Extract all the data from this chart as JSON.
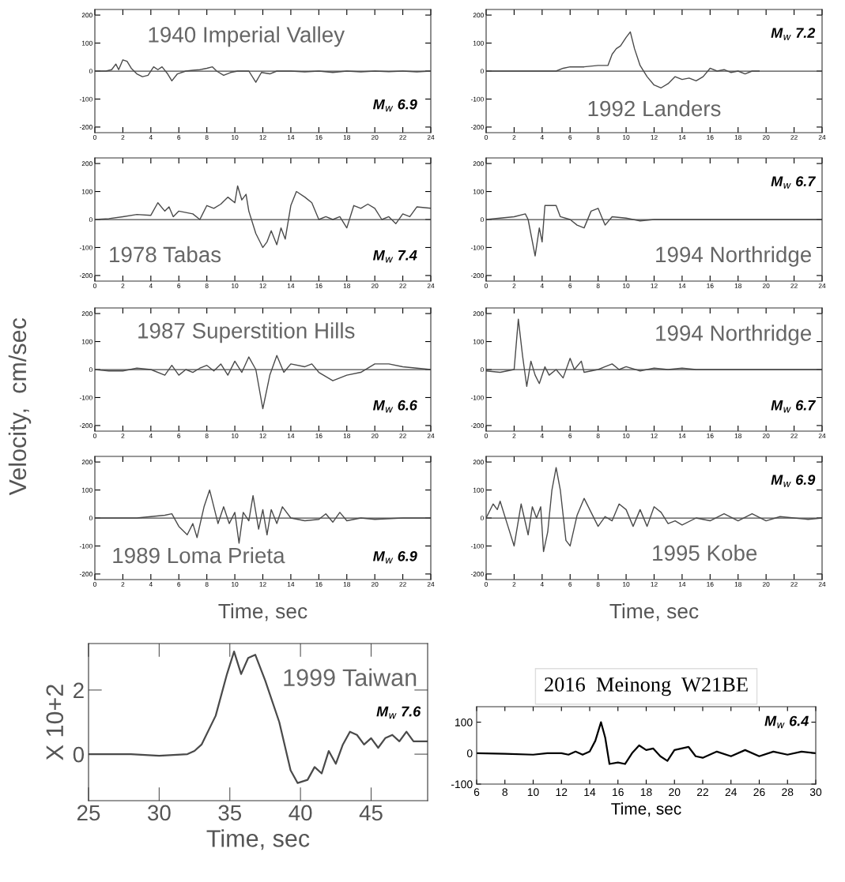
{
  "chart_data": [
    {
      "type": "line",
      "title": "1940 Imperial Valley",
      "annotations": [
        "M$_{w}$ 6.9"
      ],
      "color": "#4a4a4a",
      "xlim": [
        0,
        24
      ],
      "xticks": [
        0,
        2,
        4,
        6,
        8,
        10,
        12,
        14,
        16,
        18,
        20,
        22,
        24
      ],
      "ylim": [
        -220,
        220
      ],
      "yticks": [
        -200,
        -100,
        0,
        100,
        200
      ],
      "ref_lines": [
        {
          "axis": "y",
          "value": 0
        }
      ],
      "x": [
        0,
        0.8,
        1.2,
        1.5,
        1.7,
        2,
        2.3,
        2.6,
        3,
        3.4,
        3.8,
        4.2,
        4.5,
        4.8,
        5.2,
        5.5,
        5.9,
        6.5,
        7,
        7.5,
        8,
        8.4,
        8.7,
        9.2,
        9.7,
        10.2,
        11,
        11.5,
        11.9,
        12.5,
        13,
        14,
        15,
        16,
        17,
        18,
        19,
        20,
        21,
        22,
        23,
        24
      ],
      "values": [
        0,
        0,
        5,
        25,
        5,
        40,
        35,
        10,
        -10,
        -20,
        -15,
        15,
        5,
        15,
        -10,
        -35,
        -10,
        0,
        3,
        5,
        10,
        15,
        0,
        -15,
        -5,
        0,
        0,
        -40,
        -5,
        -10,
        0,
        0,
        -3,
        0,
        -5,
        0,
        -3,
        0,
        -2,
        0,
        -3,
        0
      ]
    },
    {
      "type": "line",
      "title": "1992 Landers",
      "annotations": [
        "M$_{w}$ 7.2"
      ],
      "color": "#4a4a4a",
      "xlim": [
        0,
        24
      ],
      "xticks": [
        0,
        2,
        4,
        6,
        8,
        10,
        12,
        14,
        16,
        18,
        20,
        22,
        24
      ],
      "ylim": [
        -220,
        220
      ],
      "yticks": [
        -200,
        -100,
        0,
        100,
        200
      ],
      "ref_lines": [
        {
          "axis": "y",
          "value": 0
        }
      ],
      "x": [
        0,
        5,
        5.5,
        6,
        7,
        8,
        8.7,
        9,
        9.3,
        9.6,
        10,
        10.3,
        10.6,
        11,
        11.5,
        12,
        12.5,
        13,
        13.5,
        14,
        14.5,
        15,
        15.5,
        16,
        16.5,
        17,
        17.5,
        18,
        18.5,
        19,
        19.5
      ],
      "values": [
        0,
        0,
        10,
        15,
        15,
        20,
        20,
        60,
        80,
        90,
        120,
        140,
        80,
        20,
        -20,
        -50,
        -60,
        -45,
        -20,
        -30,
        -25,
        -35,
        -20,
        10,
        0,
        5,
        -5,
        0,
        -10,
        0,
        0
      ]
    },
    {
      "type": "line",
      "title": "1978 Tabas",
      "annotations": [
        "M$_{w}$ 7.4"
      ],
      "color": "#4a4a4a",
      "xlim": [
        0,
        24
      ],
      "xticks": [
        0,
        2,
        4,
        6,
        8,
        10,
        12,
        14,
        16,
        18,
        20,
        22,
        24
      ],
      "ylim": [
        -220,
        220
      ],
      "yticks": [
        -200,
        -100,
        0,
        100,
        200
      ],
      "ref_lines": [
        {
          "axis": "y",
          "value": 0
        }
      ],
      "x": [
        0,
        1,
        2,
        3,
        4,
        4.5,
        5,
        5.3,
        5.6,
        6,
        7,
        7.5,
        8,
        8.5,
        9,
        9.5,
        10,
        10.2,
        10.5,
        10.8,
        11,
        11.5,
        12,
        12.3,
        12.6,
        13,
        13.3,
        13.6,
        14,
        14.4,
        15,
        15.5,
        16,
        16.5,
        17,
        17.5,
        18,
        18.5,
        19,
        19.5,
        20,
        20.5,
        21,
        21.5,
        22,
        22.5,
        23,
        24
      ],
      "values": [
        0,
        3,
        10,
        18,
        15,
        60,
        30,
        45,
        10,
        30,
        20,
        0,
        50,
        40,
        55,
        80,
        60,
        120,
        70,
        90,
        30,
        -50,
        -100,
        -80,
        -40,
        -90,
        -30,
        -70,
        50,
        100,
        80,
        60,
        0,
        10,
        0,
        10,
        -30,
        50,
        40,
        55,
        40,
        0,
        10,
        -15,
        20,
        10,
        45,
        40
      ]
    },
    {
      "type": "line",
      "title": "1994 Northridge",
      "annotations": [
        "M$_{w}$ 6.7"
      ],
      "color": "#4a4a4a",
      "xlim": [
        0,
        24
      ],
      "xticks": [
        0,
        2,
        4,
        6,
        8,
        10,
        12,
        14,
        16,
        18,
        20,
        22,
        24
      ],
      "ylim": [
        -220,
        220
      ],
      "yticks": [
        -200,
        -100,
        0,
        100,
        200
      ],
      "ref_lines": [
        {
          "axis": "y",
          "value": 0
        }
      ],
      "x": [
        0,
        2,
        2.8,
        3,
        3.5,
        3.8,
        4,
        4.2,
        4.6,
        5,
        5.3,
        6,
        6.5,
        7,
        7.5,
        8,
        8.5,
        9,
        10,
        11,
        12,
        24
      ],
      "values": [
        0,
        10,
        20,
        0,
        -130,
        -30,
        -80,
        50,
        50,
        50,
        10,
        0,
        -20,
        -30,
        30,
        40,
        -20,
        10,
        5,
        -5,
        0,
        0
      ]
    },
    {
      "type": "line",
      "title": "1987 Superstition Hills",
      "ylabel": "Velocity,  cm/sec",
      "annotations": [
        "M$_{w}$ 6.6"
      ],
      "color": "#4a4a4a",
      "xlim": [
        0,
        24
      ],
      "xticks": [
        0,
        2,
        4,
        6,
        8,
        10,
        12,
        14,
        16,
        18,
        20,
        22,
        24
      ],
      "ylim": [
        -220,
        220
      ],
      "yticks": [
        -200,
        -100,
        0,
        100,
        200
      ],
      "ref_lines": [
        {
          "axis": "y",
          "value": 0
        }
      ],
      "x": [
        0,
        1,
        2,
        3,
        4,
        5,
        5.5,
        6,
        6.5,
        7,
        7.5,
        8,
        8.5,
        9,
        9.5,
        10,
        10.5,
        11,
        11.5,
        12,
        12.5,
        13,
        13.5,
        14,
        15,
        15.5,
        16,
        17,
        18,
        19,
        20,
        21,
        22,
        24
      ],
      "values": [
        0,
        -5,
        -5,
        5,
        0,
        -20,
        15,
        -20,
        0,
        -10,
        5,
        15,
        -5,
        20,
        -20,
        30,
        -10,
        45,
        0,
        -140,
        -20,
        50,
        -10,
        20,
        10,
        20,
        -10,
        -40,
        -20,
        -10,
        20,
        20,
        10,
        0
      ]
    },
    {
      "type": "line",
      "title": "1994 Northridge",
      "annotations": [
        "M$_{w}$ 6.7"
      ],
      "color": "#4a4a4a",
      "xlim": [
        0,
        24
      ],
      "xticks": [
        0,
        2,
        4,
        6,
        8,
        10,
        12,
        14,
        16,
        18,
        20,
        22,
        24
      ],
      "ylim": [
        -220,
        220
      ],
      "yticks": [
        -200,
        -100,
        0,
        100,
        200
      ],
      "ref_lines": [
        {
          "axis": "y",
          "value": 0
        }
      ],
      "x": [
        0,
        1,
        1.5,
        2,
        2.3,
        2.6,
        2.9,
        3.2,
        3.5,
        3.8,
        4.2,
        4.5,
        5,
        5.5,
        6,
        6.3,
        6.8,
        7,
        8,
        9,
        9.5,
        10,
        11,
        12,
        13,
        14,
        15,
        24
      ],
      "values": [
        -5,
        -10,
        -5,
        0,
        180,
        50,
        -60,
        30,
        -20,
        -50,
        10,
        -20,
        0,
        -30,
        40,
        0,
        30,
        -10,
        0,
        20,
        0,
        10,
        -5,
        5,
        0,
        5,
        0,
        0
      ]
    },
    {
      "type": "line",
      "title": "1989 Loma Prieta",
      "xlabel": "Time, sec",
      "annotations": [
        "M$_{w}$ 6.9"
      ],
      "color": "#4a4a4a",
      "xlim": [
        0,
        24
      ],
      "xticks": [
        0,
        2,
        4,
        6,
        8,
        10,
        12,
        14,
        16,
        18,
        20,
        22,
        24
      ],
      "ylim": [
        -220,
        220
      ],
      "yticks": [
        -200,
        -100,
        0,
        100,
        200
      ],
      "ref_lines": [
        {
          "axis": "y",
          "value": 0
        }
      ],
      "x": [
        0,
        3,
        4,
        5,
        5.5,
        6,
        6.6,
        7,
        7.3,
        7.8,
        8.2,
        8.5,
        8.8,
        9.2,
        9.6,
        10,
        10.3,
        10.6,
        11,
        11.3,
        11.7,
        12,
        12.3,
        12.6,
        13,
        13.4,
        14,
        15,
        16,
        16.5,
        17,
        17.5,
        18,
        19,
        20,
        22,
        24
      ],
      "values": [
        0,
        0,
        5,
        10,
        15,
        -30,
        -60,
        -20,
        -70,
        40,
        100,
        40,
        -20,
        40,
        -20,
        20,
        -90,
        20,
        -10,
        80,
        -40,
        30,
        -60,
        30,
        -20,
        40,
        0,
        -10,
        -5,
        15,
        -15,
        20,
        -10,
        0,
        -5,
        0,
        0
      ]
    },
    {
      "type": "line",
      "title": "1995 Kobe",
      "xlabel": "Time, sec",
      "annotations": [
        "M$_{w}$ 6.9"
      ],
      "color": "#4a4a4a",
      "xlim": [
        0,
        24
      ],
      "xticks": [
        0,
        2,
        4,
        6,
        8,
        10,
        12,
        14,
        16,
        18,
        20,
        22,
        24
      ],
      "ylim": [
        -220,
        220
      ],
      "yticks": [
        -200,
        -100,
        0,
        100,
        200
      ],
      "ref_lines": [
        {
          "axis": "y",
          "value": 0
        }
      ],
      "x": [
        0,
        0.5,
        0.8,
        1,
        1.5,
        2,
        2.5,
        3,
        3.3,
        3.6,
        3.9,
        4.1,
        4.4,
        4.7,
        5,
        5.3,
        5.7,
        6,
        6.5,
        7,
        7.5,
        8,
        8.5,
        9,
        9.5,
        10,
        10.5,
        11,
        11.5,
        12,
        12.5,
        13,
        13.5,
        14,
        15,
        16,
        17,
        18,
        19,
        20,
        21,
        22,
        23,
        24
      ],
      "values": [
        0,
        50,
        30,
        60,
        -20,
        -100,
        50,
        -60,
        40,
        0,
        40,
        -120,
        -50,
        100,
        180,
        100,
        -80,
        -100,
        10,
        70,
        20,
        -30,
        5,
        -10,
        50,
        30,
        -30,
        30,
        -30,
        40,
        20,
        -20,
        -10,
        -25,
        0,
        -10,
        15,
        -10,
        15,
        -10,
        5,
        0,
        -5,
        0
      ]
    },
    {
      "type": "line",
      "title": "1999 Taiwan",
      "xlabel": "Time, sec",
      "ylabel": "X 10+2",
      "annotations": [
        "M$_{w}$ 7.6"
      ],
      "color": "#4a4a4a",
      "xlim": [
        25,
        49
      ],
      "xticks": [
        25,
        30,
        35,
        40,
        45
      ],
      "ylim": [
        -1.45,
        3.45
      ],
      "yticks": [
        0,
        2
      ],
      "x": [
        25,
        28,
        30,
        32,
        32.5,
        33,
        34,
        34.8,
        35.3,
        35.8,
        36.3,
        36.8,
        37.5,
        38.5,
        39.3,
        39.8,
        40.5,
        41,
        41.5,
        42,
        42.5,
        43,
        43.5,
        44,
        44.5,
        45,
        45.5,
        46,
        46.5,
        47,
        47.5,
        48,
        49
      ],
      "values": [
        0,
        0,
        -0.05,
        0,
        0.1,
        0.3,
        1.2,
        2.5,
        3.2,
        2.5,
        3.0,
        3.1,
        2.3,
        1.0,
        -0.5,
        -0.9,
        -0.8,
        -0.4,
        -0.6,
        0.1,
        -0.3,
        0.3,
        0.7,
        0.6,
        0.3,
        0.5,
        0.2,
        0.5,
        0.6,
        0.4,
        0.7,
        0.4,
        0.4
      ]
    },
    {
      "type": "line",
      "title": "2016  Meinong  W21BE",
      "xlabel": "Time, sec",
      "annotations": [
        "M$_{w}$ 6.4"
      ],
      "color": "#000000",
      "xlim": [
        6,
        30
      ],
      "xticks": [
        6,
        8,
        10,
        12,
        14,
        16,
        18,
        20,
        22,
        24,
        26,
        28,
        30
      ],
      "ylim": [
        -100,
        150
      ],
      "yticks": [
        -100,
        0,
        100
      ],
      "x": [
        6,
        8,
        10,
        11,
        12,
        12.5,
        13,
        13.5,
        14,
        14.4,
        14.8,
        15.1,
        15.4,
        16,
        16.5,
        17,
        17.5,
        18,
        18.5,
        19,
        19.5,
        20,
        21,
        21.5,
        22,
        23,
        24,
        25,
        26,
        27,
        28,
        29,
        30
      ],
      "values": [
        0,
        -2,
        -5,
        0,
        0,
        -5,
        5,
        -5,
        5,
        40,
        100,
        50,
        -35,
        -30,
        -35,
        0,
        25,
        10,
        15,
        -10,
        -25,
        10,
        20,
        -10,
        -15,
        5,
        -10,
        10,
        -10,
        5,
        -5,
        5,
        0
      ]
    }
  ]
}
